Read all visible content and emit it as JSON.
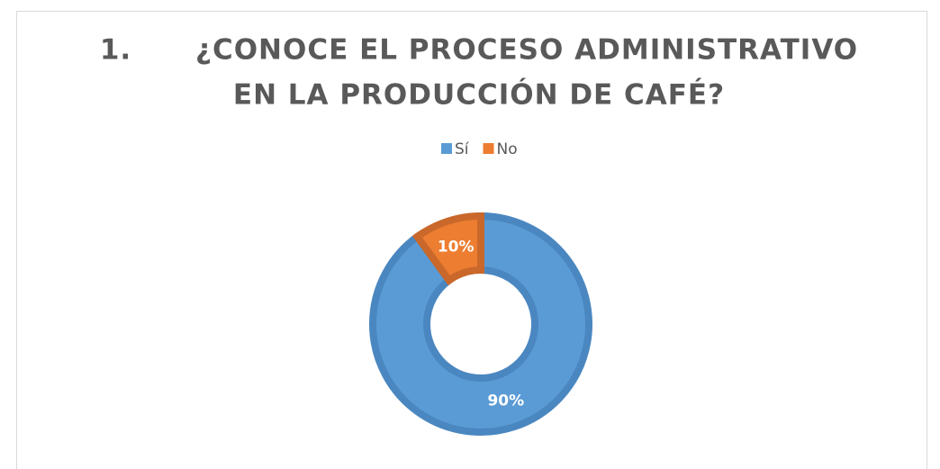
{
  "chart_data": {
    "type": "donut",
    "title": [
      "1.      ¿CONOCE EL PROCESO ADMINISTRATIVO",
      "EN LA PRODUCCIÓN DE CAFÉ?"
    ],
    "categories": [
      "Sí",
      "No"
    ],
    "values": [
      90,
      10
    ],
    "value_labels": [
      "90%",
      "10%"
    ],
    "colors": [
      "#5b9bd5",
      "#ed7d31"
    ],
    "legend": "top"
  }
}
